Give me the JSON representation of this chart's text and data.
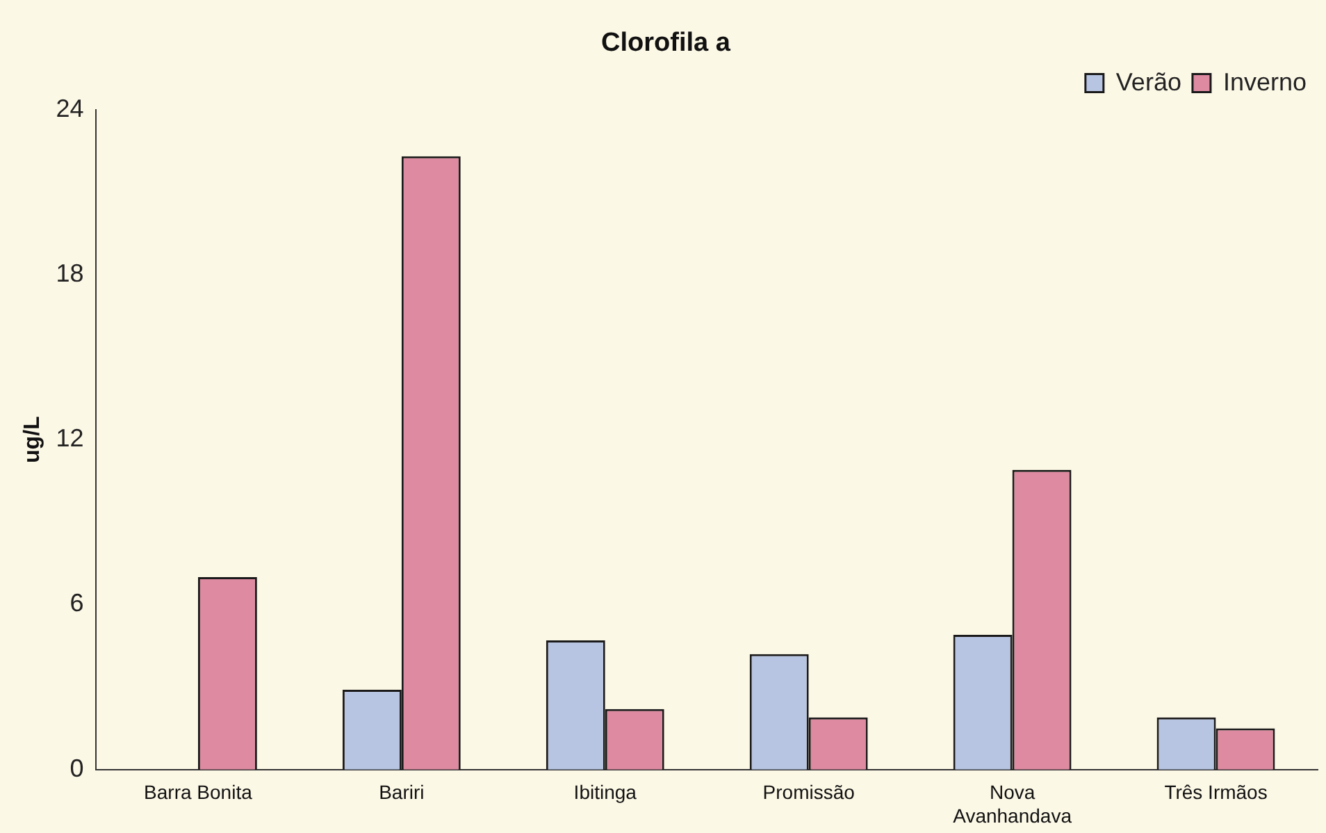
{
  "chart_data": {
    "type": "bar",
    "title": "Clorofila a",
    "ylabel": "ug/L",
    "categories": [
      "Barra Bonita",
      "Bariri",
      "Ibitinga",
      "Promissão",
      "Nova Avanhandava",
      "Três Irmãos"
    ],
    "series": [
      {
        "name": "Verão",
        "color": "#b7c4e2",
        "values": [
          null,
          2.9,
          4.7,
          4.2,
          4.9,
          1.9
        ]
      },
      {
        "name": "Inverno",
        "color": "#de8aa0",
        "values": [
          7.0,
          22.3,
          2.2,
          1.9,
          10.9,
          1.5
        ]
      }
    ],
    "ylim": [
      0,
      24
    ],
    "yticks": [
      0,
      6,
      12,
      18,
      24
    ],
    "grid": false,
    "legend": "top right"
  }
}
